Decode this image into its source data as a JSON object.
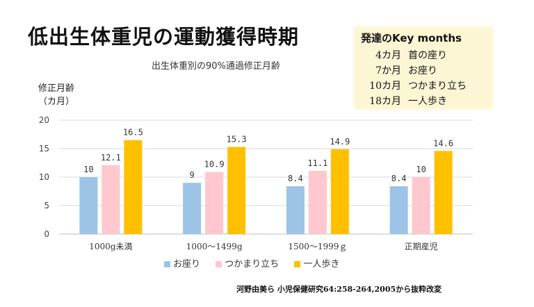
{
  "title": "低出生体重児の運動獲得時期",
  "key_box": {
    "title": "発達のKey months",
    "rows": [
      {
        "age": "4カ月",
        "milestone": "首の座り"
      },
      {
        "age": "7か月",
        "milestone": "お座り"
      },
      {
        "age": "10カ月",
        "milestone": "つかまり立ち"
      },
      {
        "age": "18カ月",
        "milestone": "一人歩き"
      }
    ]
  },
  "source": "河野由美ら 小児保健研究64:258-264,2005から抜粋改変",
  "chart_data": {
    "type": "bar",
    "title": "",
    "subtitle": "出生体重別の90%通過修正月齢",
    "ylabel_line1": "修正月齢",
    "ylabel_line2": "（カ月）",
    "xlabel": "",
    "ylim": [
      0,
      20
    ],
    "yticks": [
      "0",
      "5",
      "10",
      "15",
      "20"
    ],
    "grid": true,
    "legend_position": "bottom",
    "categories": [
      "1000g未満",
      "1000～1499g",
      "1500～1999ｇ",
      "正期産児"
    ],
    "series": [
      {
        "name": "お座り",
        "color": "#9dc3e6",
        "values": [
          10,
          9,
          8.4,
          8.4
        ],
        "labels": [
          "10",
          "9",
          "8.4",
          "8.4"
        ]
      },
      {
        "name": "つかまり立ち",
        "color": "#ffc7ce",
        "values": [
          12.1,
          10.9,
          11.1,
          10
        ],
        "labels": [
          "12.1",
          "10.9",
          "11.1",
          "10"
        ]
      },
      {
        "name": "一人歩き",
        "color": "#ffc000",
        "values": [
          16.5,
          15.3,
          14.9,
          14.6
        ],
        "labels": [
          "16.5",
          "15.3",
          "14.9",
          "14.6"
        ]
      }
    ]
  }
}
